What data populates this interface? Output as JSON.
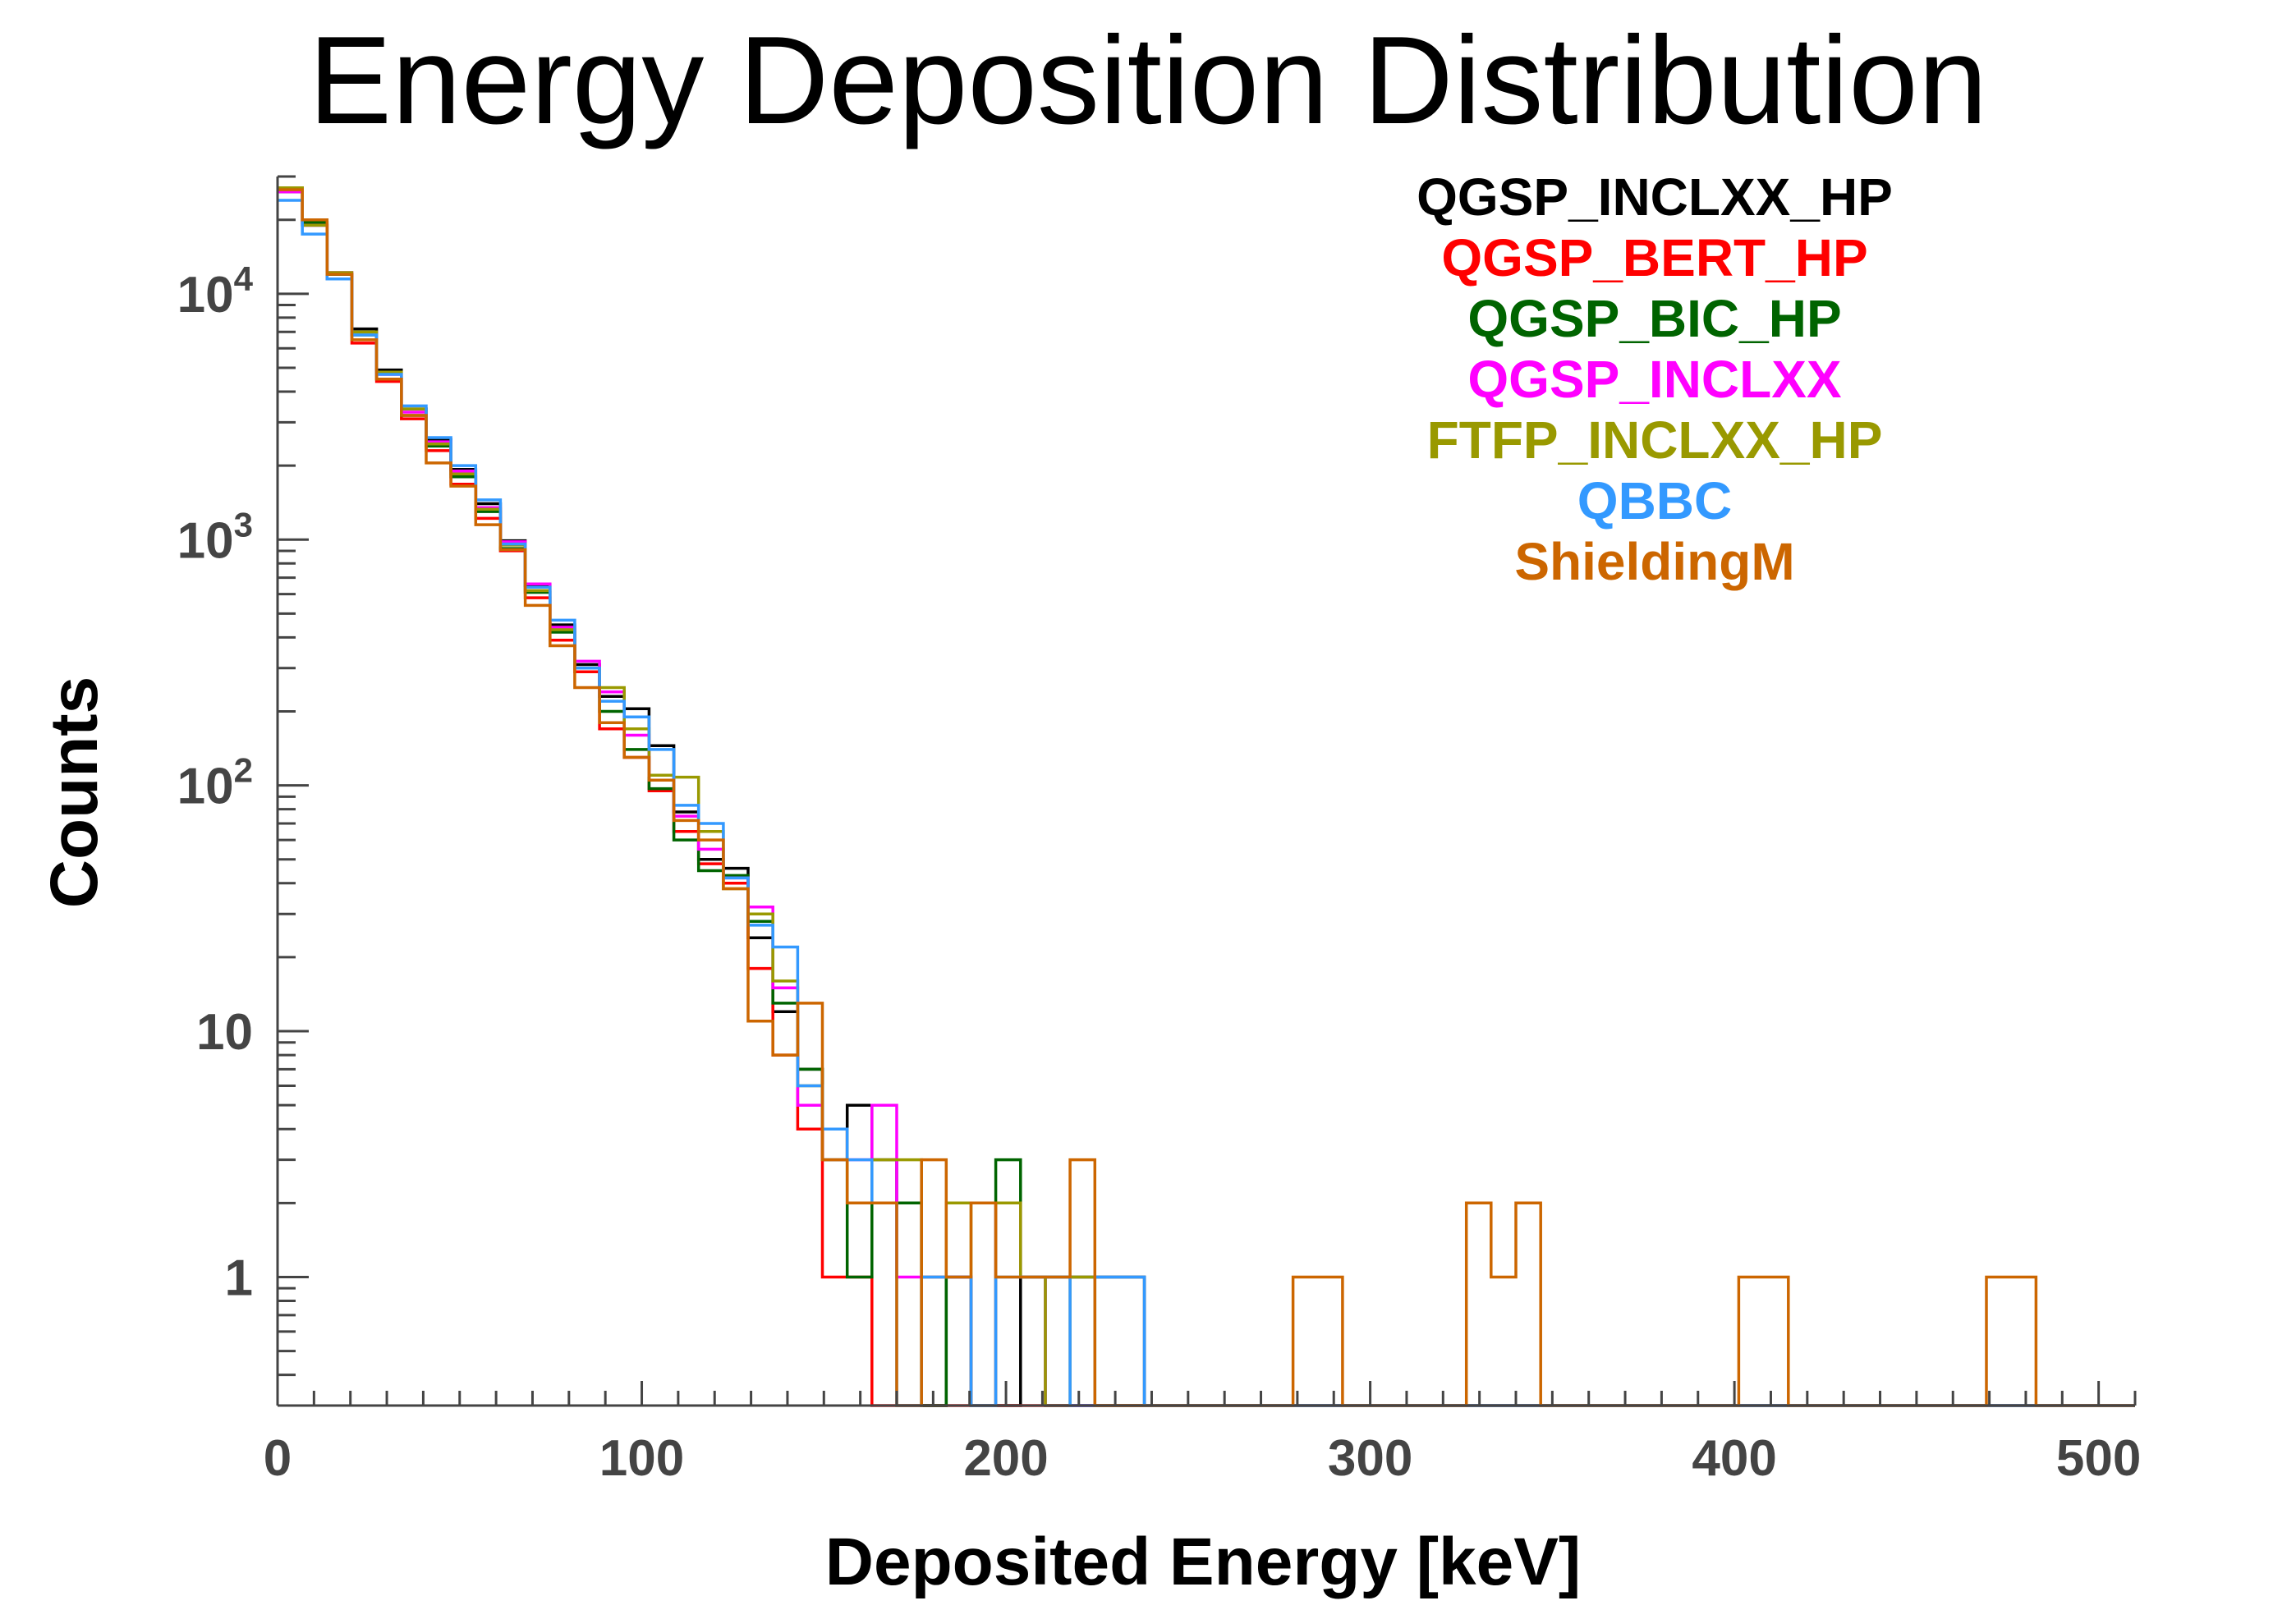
{
  "chart_data": {
    "type": "line",
    "style": "step-histogram",
    "title": "Energy Deposition Distribution",
    "xlabel": "Deposited Energy [keV]",
    "ylabel": "Counts",
    "xlim": [
      0,
      510
    ],
    "ylim": [
      0.3,
      30000
    ],
    "yscale": "log",
    "bin_width": 6.8,
    "x_ticks": [
      {
        "value": 0,
        "label": "0"
      },
      {
        "value": 100,
        "label": "100"
      },
      {
        "value": 200,
        "label": "200"
      },
      {
        "value": 300,
        "label": "300"
      },
      {
        "value": 400,
        "label": "400"
      },
      {
        "value": 500,
        "label": "500"
      }
    ],
    "y_ticks": [
      {
        "value": 1,
        "base": "1",
        "exp": ""
      },
      {
        "value": 10,
        "base": "10",
        "exp": ""
      },
      {
        "value": 100,
        "base": "10",
        "exp": "2"
      },
      {
        "value": 1000,
        "base": "10",
        "exp": "3"
      },
      {
        "value": 10000,
        "base": "10",
        "exp": "4"
      }
    ],
    "legend_position": "top-right",
    "grid": false,
    "series": [
      {
        "name": "QGSP_INCLXX_HP",
        "color": "#000000",
        "values": [
          26000,
          19000,
          12000,
          7200,
          4900,
          3400,
          2550,
          1930,
          1400,
          990,
          650,
          450,
          310,
          230,
          205,
          145,
          78,
          50,
          46,
          24,
          12,
          7,
          3,
          5,
          3,
          2,
          0,
          1,
          0,
          0,
          1,
          1,
          1,
          1,
          1,
          0,
          0,
          0,
          0,
          0,
          0,
          0,
          0,
          0,
          0,
          0,
          0,
          0,
          0,
          0,
          0,
          0,
          0,
          0,
          0,
          0,
          0,
          0,
          0,
          0,
          0,
          0,
          0,
          0,
          0,
          0,
          0,
          0,
          0,
          0,
          0,
          0,
          0,
          0,
          0
        ]
      },
      {
        "name": "QGSP_BERT_HP",
        "color": "#ff0000",
        "values": [
          27000,
          19500,
          11500,
          6300,
          4400,
          3100,
          2300,
          1680,
          1220,
          900,
          580,
          390,
          290,
          170,
          130,
          95,
          65,
          48,
          40,
          18,
          8,
          4,
          1,
          1,
          0,
          0,
          0,
          0,
          0,
          0,
          0,
          0,
          0,
          0,
          0,
          0,
          0,
          0,
          0,
          0,
          0,
          0,
          0,
          0,
          0,
          0,
          0,
          0,
          0,
          0,
          0,
          0,
          0,
          0,
          0,
          0,
          0,
          0,
          0,
          0,
          0,
          0,
          0,
          0,
          0,
          0,
          0,
          0,
          0,
          0,
          0,
          0,
          0,
          0,
          0
        ]
      },
      {
        "name": "QGSP_BIC_HP",
        "color": "#006400",
        "values": [
          26500,
          19500,
          12000,
          6800,
          4500,
          3200,
          2400,
          1800,
          1300,
          920,
          610,
          420,
          300,
          200,
          140,
          97,
          60,
          45,
          43,
          28,
          13,
          7,
          4,
          1,
          2,
          2,
          0,
          1,
          0,
          3,
          1,
          0,
          0,
          0,
          0,
          0,
          0,
          0,
          0,
          0,
          0,
          0,
          0,
          0,
          0,
          0,
          0,
          0,
          0,
          0,
          0,
          0,
          0,
          0,
          0,
          0,
          0,
          0,
          0,
          0,
          0,
          0,
          0,
          0,
          0,
          0,
          0,
          0,
          0,
          0,
          0,
          0,
          0,
          0,
          0
        ]
      },
      {
        "name": "QGSP_INCLXX",
        "color": "#ff00ff",
        "values": [
          26000,
          19000,
          12200,
          7000,
          4700,
          3300,
          2500,
          1900,
          1350,
          980,
          660,
          440,
          320,
          240,
          160,
          110,
          75,
          55,
          42,
          32,
          15,
          5,
          4,
          3,
          5,
          1,
          1,
          1,
          0,
          2,
          1,
          0,
          0,
          0,
          0,
          0,
          0,
          0,
          0,
          0,
          0,
          0,
          0,
          0,
          0,
          0,
          0,
          0,
          0,
          0,
          0,
          0,
          0,
          0,
          0,
          0,
          0,
          0,
          0,
          0,
          0,
          0,
          0,
          0,
          0,
          0,
          0,
          0,
          0,
          0,
          0,
          0,
          0,
          0,
          0
        ]
      },
      {
        "name": "FTFP_INCLXX_HP",
        "color": "#999900",
        "values": [
          27000,
          19000,
          12200,
          7000,
          4800,
          3400,
          2450,
          1850,
          1330,
          950,
          620,
          430,
          300,
          250,
          170,
          110,
          108,
          65,
          38,
          30,
          16,
          6,
          4,
          2,
          3,
          3,
          1,
          2,
          0,
          2,
          1,
          0,
          1,
          0,
          0,
          0,
          0,
          0,
          0,
          0,
          0,
          0,
          0,
          0,
          0,
          0,
          0,
          0,
          0,
          0,
          0,
          0,
          0,
          0,
          0,
          0,
          0,
          0,
          0,
          0,
          0,
          0,
          0,
          0,
          0,
          0,
          0,
          0,
          0,
          0,
          0,
          0,
          0,
          0,
          0
        ]
      },
      {
        "name": "QBBC",
        "color": "#3399ff",
        "values": [
          24000,
          17500,
          11500,
          6800,
          4700,
          3500,
          2600,
          2000,
          1450,
          960,
          640,
          470,
          300,
          220,
          190,
          140,
          83,
          70,
          42,
          27,
          22,
          6,
          4,
          3,
          2,
          0,
          1,
          1,
          0,
          1,
          1,
          1,
          0,
          1,
          1,
          0,
          0,
          0,
          0,
          0,
          0,
          0,
          0,
          0,
          0,
          0,
          0,
          0,
          0,
          0,
          0,
          0,
          0,
          0,
          0,
          0,
          0,
          0,
          0,
          0,
          0,
          0,
          0,
          0,
          0,
          0,
          0,
          0,
          0,
          0,
          0,
          0,
          0,
          0,
          0
        ]
      },
      {
        "name": "ShieldingM",
        "color": "#cc6600",
        "values": [
          26500,
          20000,
          12000,
          6500,
          4500,
          3200,
          2050,
          1650,
          1150,
          910,
          540,
          370,
          250,
          180,
          130,
          105,
          72,
          60,
          38,
          11,
          8,
          13,
          3,
          2,
          2,
          0,
          3,
          1,
          2,
          1,
          1,
          1,
          3,
          0,
          0,
          0,
          0,
          0,
          0,
          0,
          0,
          1,
          1,
          0,
          0,
          0,
          0,
          0,
          2,
          1,
          2,
          0,
          0,
          0,
          0,
          0,
          0,
          0,
          0,
          1,
          1,
          0,
          0,
          0,
          0,
          0,
          0,
          0,
          0,
          1,
          1,
          0,
          0,
          0,
          0
        ]
      }
    ]
  }
}
